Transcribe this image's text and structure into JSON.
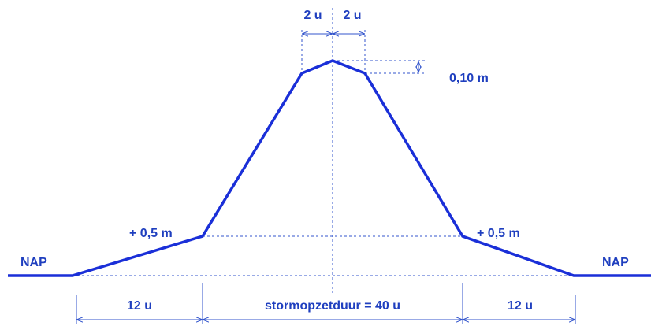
{
  "labels": {
    "top_left_width": "2 u",
    "top_right_width": "2 u",
    "crest_height": "0,10 m",
    "left_berm": "+ 0,5 m",
    "right_berm": "+ 0,5 m",
    "left_level": "NAP",
    "right_level": "NAP",
    "left_duration": "12 u",
    "middle_duration": "stormopzetduur = 40 u",
    "right_duration": "12 u"
  }
}
